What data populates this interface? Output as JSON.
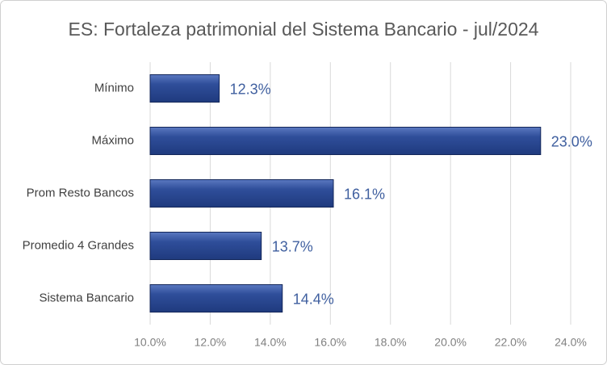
{
  "chart_data": {
    "type": "barh",
    "title": "ES: Fortaleza patrimonial del Sistema Bancario - jul/2024",
    "categories": [
      "Mínimo",
      "Máximo",
      "Prom Resto Bancos",
      "Promedio 4 Grandes",
      "Sistema Bancario"
    ],
    "values": [
      12.3,
      23.0,
      16.1,
      13.7,
      14.4
    ],
    "value_labels": [
      "12.3%",
      "23.0%",
      "16.1%",
      "13.7%",
      "14.4%"
    ],
    "color": "#2f4e9a",
    "xlim": [
      10,
      24
    ],
    "xticks": [
      {
        "value": 10,
        "label": "10.0%"
      },
      {
        "value": 12,
        "label": "12.0%"
      },
      {
        "value": 14,
        "label": "14.0%"
      },
      {
        "value": 16,
        "label": "16.0%"
      },
      {
        "value": 18,
        "label": "18.0%"
      },
      {
        "value": 20,
        "label": "20.0%"
      },
      {
        "value": 22,
        "label": "22.0%"
      },
      {
        "value": 24,
        "label": "24.0%"
      }
    ],
    "grid": true
  }
}
